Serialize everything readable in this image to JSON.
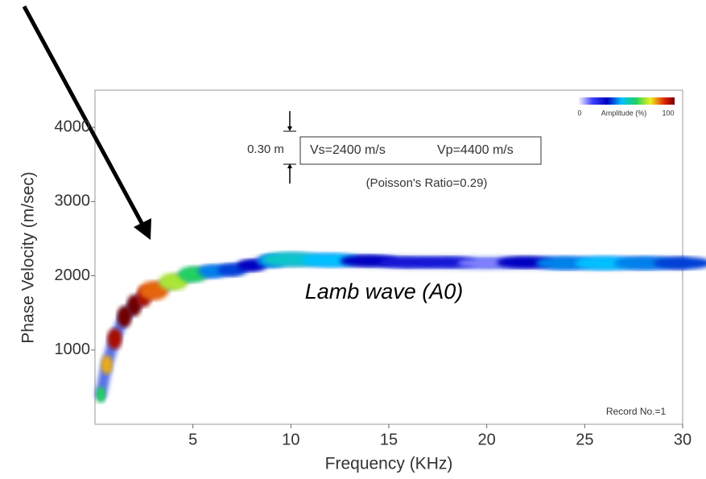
{
  "chart_data": {
    "type": "dispersion",
    "x_label": "Frequency (KHz)",
    "y_label": "Phase Velocity (m/sec)",
    "xlim": [
      0,
      30
    ],
    "ylim": [
      0,
      4500
    ],
    "xticks": [
      5,
      10,
      15,
      20,
      25,
      30
    ],
    "yticks": [
      1000,
      2000,
      3000,
      4000
    ],
    "x": [
      0.3,
      0.6,
      1,
      1.5,
      2,
      2.5,
      3,
      4,
      5,
      6,
      7,
      8,
      9,
      10,
      12,
      14,
      16,
      18,
      20,
      22,
      24,
      26,
      28,
      30
    ],
    "values": [
      400,
      800,
      1150,
      1450,
      1600,
      1720,
      1800,
      1920,
      2020,
      2060,
      2080,
      2140,
      2200,
      2220,
      2210,
      2200,
      2180,
      2180,
      2170,
      2180,
      2170,
      2170,
      2170,
      2170
    ],
    "amplitude": [
      60,
      80,
      95,
      100,
      100,
      95,
      85,
      70,
      60,
      40,
      35,
      30,
      40,
      50,
      45,
      30,
      25,
      25,
      10,
      30,
      40,
      45,
      40,
      35
    ],
    "colorbar": {
      "label": "Amplitude (%)",
      "ticks": [
        0,
        100
      ]
    },
    "annotations": {
      "thickness": "0.30 m",
      "vs": "Vs=2400 m/s",
      "vp": "Vp=4400 m/s",
      "poisson": "(Poisson's Ratio=0.29)",
      "mode": "Lamb wave (A0)",
      "record": "Record No.=1"
    }
  }
}
